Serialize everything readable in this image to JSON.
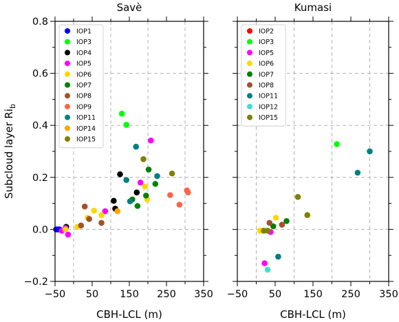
{
  "figure": {
    "ylabel": "Subcloud layer Ri",
    "ylabel_sub": "b"
  },
  "chart_data": [
    {
      "type": "scatter",
      "title": "Savè",
      "xlabel": "CBH-LCL (m)",
      "ylabel": "Subcloud layer Ri_b",
      "xlim": [
        -50,
        350
      ],
      "ylim": [
        -0.2,
        0.8
      ],
      "xticks": [
        "−50",
        "50",
        "150",
        "250",
        "350"
      ],
      "yticks": [
        "−0.2",
        "0.0",
        "0.2",
        "0.4",
        "0.6",
        "0.8"
      ],
      "grid": true,
      "legend_position": "top-left",
      "series": [
        {
          "name": "IOP1",
          "color": "#0000ff",
          "points": [
            [
              -47,
              0.0
            ],
            [
              -42,
              0.0
            ],
            [
              -38,
              0.0
            ]
          ]
        },
        {
          "name": "IOP3",
          "color": "#00ff00",
          "points": [
            [
              130,
              0.445
            ],
            [
              142,
              0.402
            ]
          ]
        },
        {
          "name": "IOP4",
          "color": "#000000",
          "points": [
            [
              -20,
              0.01
            ],
            [
              108,
              0.11
            ],
            [
              112,
              0.08
            ],
            [
              125,
              0.212
            ],
            [
              170,
              0.142
            ]
          ]
        },
        {
          "name": "IOP5",
          "color": "#ff00ff",
          "points": [
            [
              -32,
              -0.005
            ],
            [
              -22,
              0.005
            ],
            [
              -15,
              -0.02
            ],
            [
              85,
              0.07
            ],
            [
              180,
              0.18
            ],
            [
              208,
              0.342
            ]
          ]
        },
        {
          "name": "IOP6",
          "color": "#ffd700",
          "points": [
            [
              -22,
              0.0
            ],
            [
              10,
              0.01
            ],
            [
              38,
              0.045
            ],
            [
              55,
              0.072
            ],
            [
              75,
              0.055
            ],
            [
              192,
              0.165
            ],
            [
              198,
              0.115
            ]
          ]
        },
        {
          "name": "IOP7",
          "color": "#008000",
          "points": [
            [
              158,
              0.115
            ],
            [
              172,
              0.09
            ],
            [
              195,
              0.13
            ],
            [
              202,
              0.23
            ],
            [
              220,
              0.175
            ]
          ]
        },
        {
          "name": "IOP8",
          "color": "#a0522d",
          "points": [
            [
              20,
              0.015
            ],
            [
              30,
              0.088
            ],
            [
              42,
              0.04
            ],
            [
              75,
              0.025
            ]
          ]
        },
        {
          "name": "IOP9",
          "color": "#ff6347",
          "points": [
            [
              260,
              0.132
            ],
            [
              285,
              0.095
            ],
            [
              305,
              0.15
            ],
            [
              308,
              0.142
            ]
          ]
        },
        {
          "name": "IOP11",
          "color": "#008080",
          "points": [
            [
              142,
              0.19
            ],
            [
              152,
              0.108
            ],
            [
              168,
              0.318
            ],
            [
              225,
              0.205
            ]
          ]
        },
        {
          "name": "IOP14",
          "color": "#ffa500",
          "points": [
            [
              118,
              0.07
            ]
          ]
        },
        {
          "name": "IOP15",
          "color": "#808000",
          "points": [
            [
              188,
              0.27
            ],
            [
              265,
              0.215
            ]
          ]
        }
      ]
    },
    {
      "type": "scatter",
      "title": "Kumasi",
      "xlabel": "CBH-LCL (m)",
      "xlim": [
        -50,
        350
      ],
      "ylim": [
        -0.2,
        0.8
      ],
      "xticks": [
        "−50",
        "50",
        "150",
        "250",
        "350"
      ],
      "grid": true,
      "legend_position": "top-left",
      "series": [
        {
          "name": "IOP2",
          "color": "#ff0000",
          "points": []
        },
        {
          "name": "IOP3",
          "color": "#00ff00",
          "points": [
            [
              213,
              0.328
            ]
          ]
        },
        {
          "name": "IOP5",
          "color": "#ff00ff",
          "points": [
            [
              22,
              -0.13
            ],
            [
              38,
              -0.01
            ]
          ]
        },
        {
          "name": "IOP6",
          "color": "#ffd700",
          "points": [
            [
              10,
              -0.005
            ],
            [
              52,
              0.045
            ]
          ]
        },
        {
          "name": "IOP7",
          "color": "#008000",
          "points": [
            [
              45,
              0.012
            ],
            [
              80,
              0.032
            ]
          ]
        },
        {
          "name": "IOP8",
          "color": "#a0522d",
          "points": [
            [
              35,
              0.025
            ],
            [
              68,
              0.018
            ]
          ]
        },
        {
          "name": "IOP11",
          "color": "#008080",
          "points": [
            [
              58,
              -0.105
            ],
            [
              268,
              0.218
            ],
            [
              300,
              0.3
            ]
          ]
        },
        {
          "name": "IOP12",
          "color": "#40e0d0",
          "points": [
            [
              30,
              -0.155
            ]
          ]
        },
        {
          "name": "IOP15",
          "color": "#808000",
          "points": [
            [
              20,
              -0.005
            ],
            [
              30,
              -0.005
            ],
            [
              110,
              0.125
            ],
            [
              135,
              0.055
            ]
          ]
        }
      ]
    }
  ]
}
